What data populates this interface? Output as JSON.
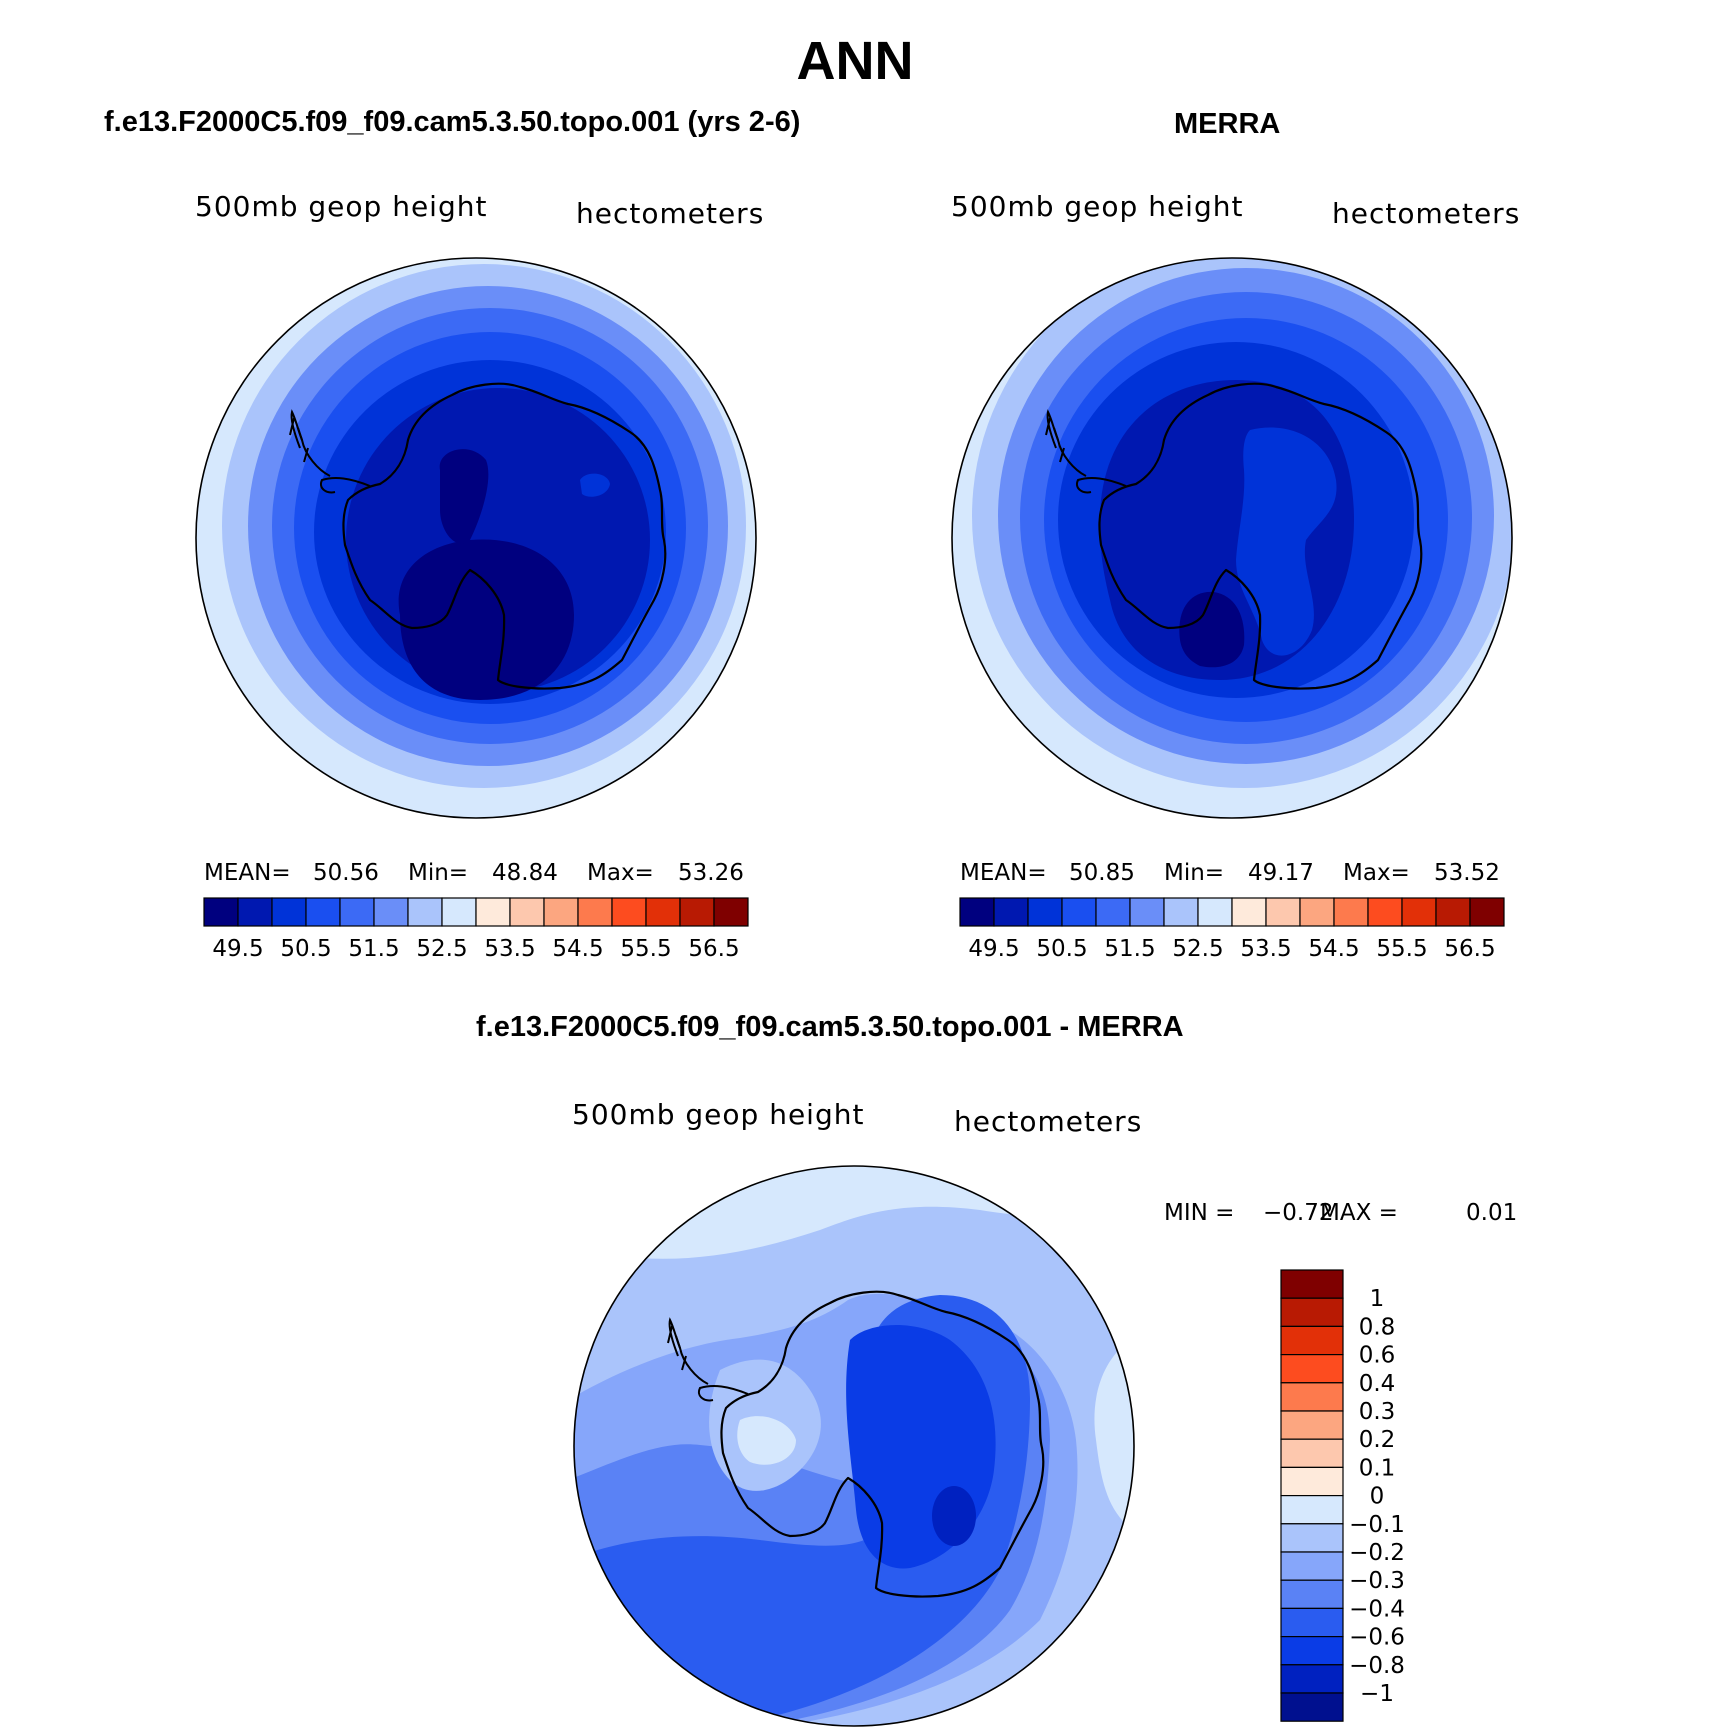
{
  "main_title": "ANN",
  "panels": [
    {
      "title": "f.e13.F2000C5.f09_f09.cam5.3.50.topo.001 (yrs 2-6)",
      "left_label": "500mb geop height",
      "right_label": "hectometers",
      "mean_label": "MEAN=",
      "mean": "50.56",
      "min_label": "Min=",
      "min": "48.84",
      "max_label": "Max=",
      "max": "53.26"
    },
    {
      "title": "MERRA",
      "left_label": "500mb geop height",
      "right_label": "hectometers",
      "mean_label": "MEAN=",
      "mean": "50.85",
      "min_label": "Min=",
      "min": "49.17",
      "max_label": "Max=",
      "max": "53.52"
    },
    {
      "title": "f.e13.F2000C5.f09_f09.cam5.3.50.topo.001 - MERRA",
      "left_label": "500mb geop height",
      "right_label": "hectometers",
      "min_label": "MIN =",
      "min": "−0.72",
      "max_label": "MAX =",
      "max": "0.01"
    }
  ],
  "colorbar_abs": {
    "colors": [
      "#00007f",
      "#0018b0",
      "#0033d8",
      "#1a4ff0",
      "#3c6af5",
      "#6a8ef8",
      "#aac4fb",
      "#d6e8fd",
      "#feeadb",
      "#fdc8ae",
      "#fca680",
      "#fd7a4d",
      "#fd4c1f",
      "#e23008",
      "#b81a03",
      "#7f0000"
    ],
    "labels": [
      "49.5",
      "50.5",
      "51.5",
      "52.5",
      "53.5",
      "54.5",
      "55.5",
      "56.5"
    ]
  },
  "colorbar_diff": {
    "colors_top_to_bottom": [
      "#7f0000",
      "#b81a03",
      "#e23008",
      "#fd4c1f",
      "#fd7a4d",
      "#fca680",
      "#fdc8ae",
      "#feeadb",
      "#d6e8fd",
      "#aac4fb",
      "#86a6fa",
      "#5a82f5",
      "#2a5cf0",
      "#0a3ce6",
      "#0021c0",
      "#00108f"
    ],
    "labels": [
      "1",
      "0.8",
      "0.6",
      "0.4",
      "0.3",
      "0.2",
      "0.1",
      "0",
      "−0.1",
      "−0.2",
      "−0.3",
      "−0.4",
      "−0.6",
      "−0.8",
      "−1"
    ]
  }
}
